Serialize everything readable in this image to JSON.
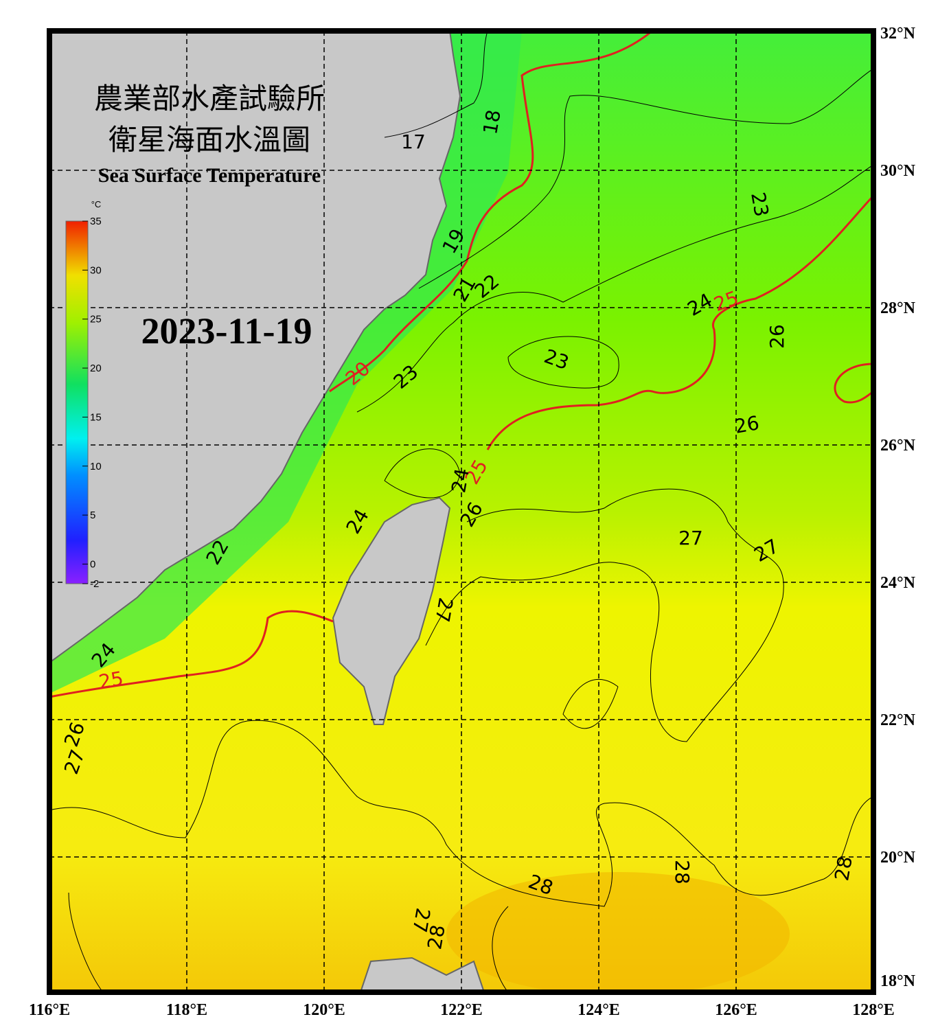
{
  "header": {
    "title_zh": [
      "農業部水產試驗所",
      "衛星海面水溫圖"
    ],
    "title_en": "Sea Surface Temperature",
    "date": "2023-11-19"
  },
  "colorbar": {
    "unit": "°C",
    "range": [
      -2,
      35
    ],
    "ticks": [
      35,
      30,
      25,
      20,
      15,
      10,
      5,
      0,
      -2
    ]
  },
  "map": {
    "lon_labels": [
      "116°E",
      "118°E",
      "120°E",
      "122°E",
      "124°E",
      "126°E",
      "128°E"
    ],
    "lat_labels": [
      "32°N",
      "30°N",
      "28°N",
      "26°N",
      "24°N",
      "22°N",
      "20°N",
      "18°N"
    ]
  },
  "contours": {
    "labels": [
      "17",
      "18",
      "19",
      "21",
      "22",
      "20",
      "23",
      "23",
      "24",
      "25",
      "26",
      "23",
      "26",
      "25",
      "24",
      "26",
      "24",
      "22",
      "27",
      "27",
      "27",
      "24",
      "25",
      "26",
      "27",
      "28",
      "28",
      "28",
      "27",
      "28"
    ]
  }
}
